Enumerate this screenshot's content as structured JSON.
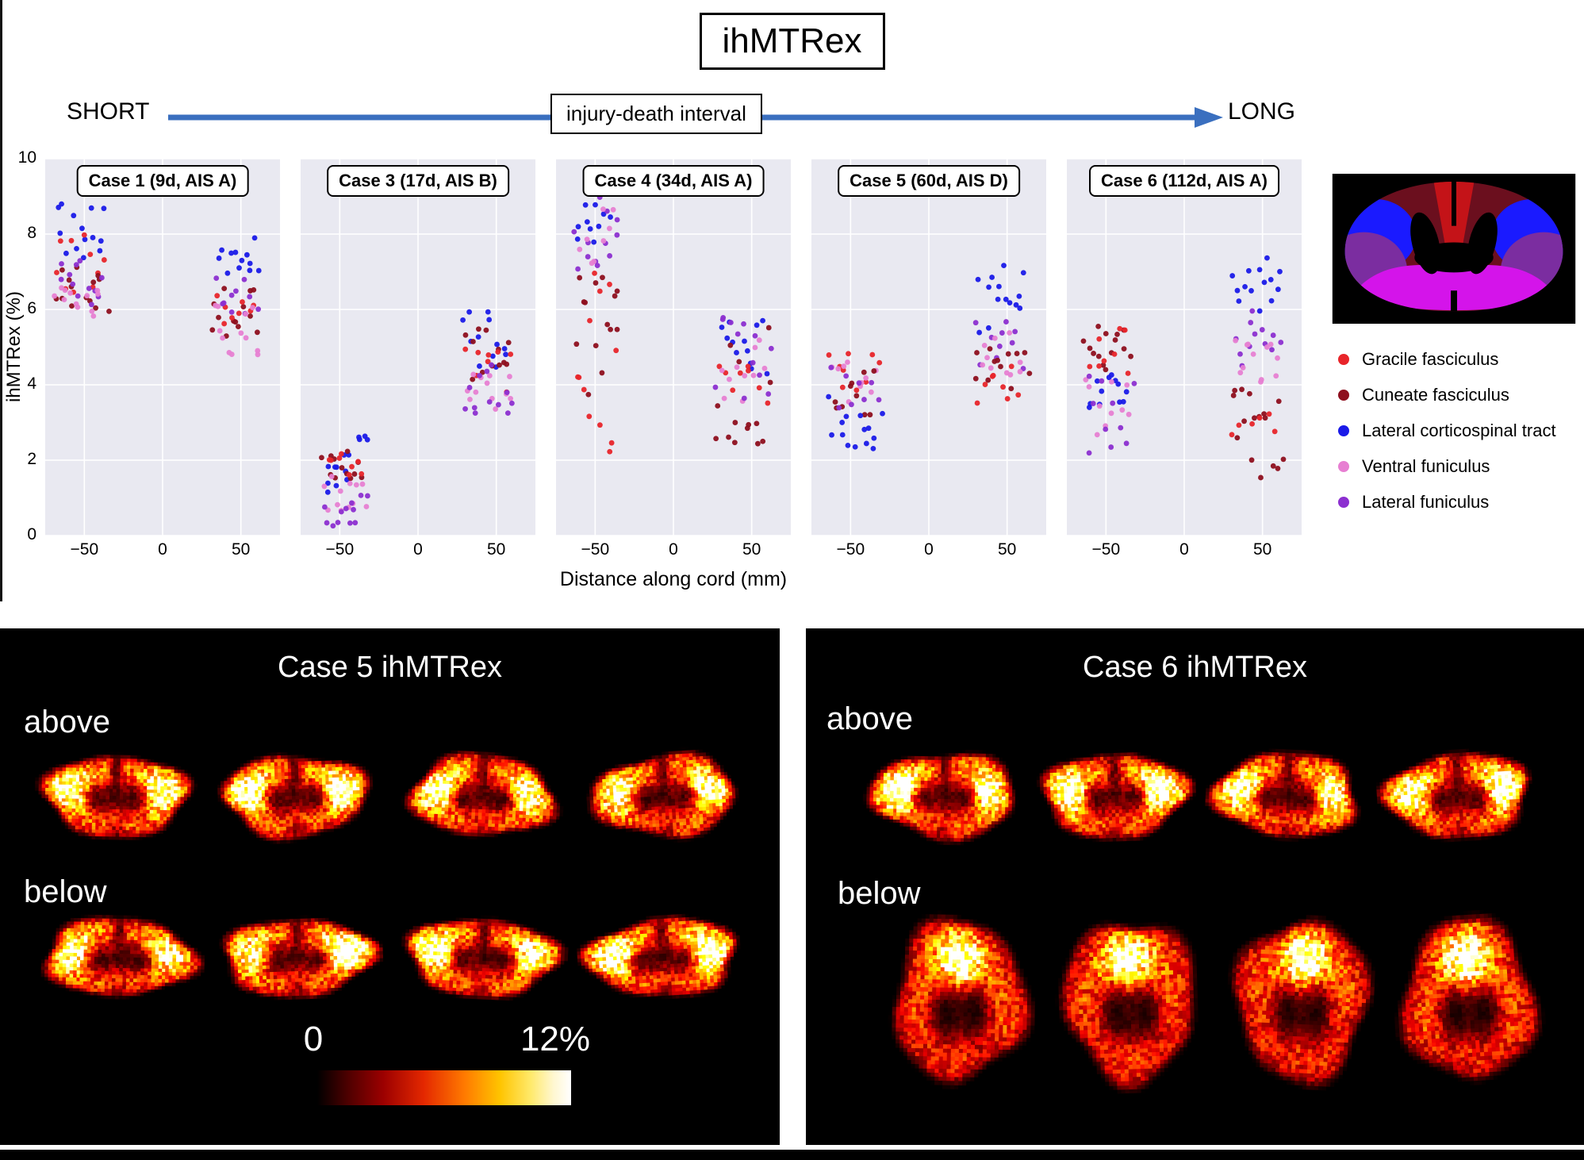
{
  "header": {
    "title": "ihMTRex",
    "axis_arrow": {
      "left": "SHORT",
      "label": "injury-death interval",
      "right": "LONG"
    }
  },
  "chart_data": {
    "type": "scatter",
    "xlabel": "Distance along cord (mm)",
    "ylabel": "ihMTRex (%)",
    "xlim": [
      -75,
      75
    ],
    "ylim": [
      0,
      10
    ],
    "xticks": [
      -50,
      0,
      50
    ],
    "yticks": [
      0,
      2,
      4,
      6,
      8,
      10
    ],
    "grid": true,
    "legend_position": "right",
    "tracts": [
      {
        "id": "gracile",
        "name": "Gracile fasciculus",
        "color": "#e8252a"
      },
      {
        "id": "cuneate",
        "name": "Cuneate fasciculus",
        "color": "#8e0f1e"
      },
      {
        "id": "cst",
        "name": "Lateral corticospinal tract",
        "color": "#1a1ae8"
      },
      {
        "id": "ventral",
        "name": "Ventral funiculus",
        "color": "#e77fd2"
      },
      {
        "id": "lateral",
        "name": "Lateral funiculus",
        "color": "#8c2fd0"
      }
    ],
    "panels": [
      {
        "label": "Case 1 (9d, AIS A)",
        "clusters": [
          {
            "tract": "cst",
            "x": [
              -68,
              -36
            ],
            "y": [
              7.3,
              9.0
            ],
            "n": 14
          },
          {
            "tract": "gracile",
            "x": [
              -68,
              -38
            ],
            "y": [
              6.3,
              8.0
            ],
            "n": 10
          },
          {
            "tract": "cuneate",
            "x": [
              -68,
              -36
            ],
            "y": [
              5.9,
              7.7
            ],
            "n": 14
          },
          {
            "tract": "lateral",
            "x": [
              -66,
              -38
            ],
            "y": [
              6.0,
              7.3
            ],
            "n": 12
          },
          {
            "tract": "ventral",
            "x": [
              -68,
              -40
            ],
            "y": [
              5.7,
              6.6
            ],
            "n": 12
          },
          {
            "tract": "cst",
            "x": [
              34,
              62
            ],
            "y": [
              6.9,
              8.0
            ],
            "n": 12
          },
          {
            "tract": "cuneate",
            "x": [
              32,
              62
            ],
            "y": [
              5.2,
              7.7
            ],
            "n": 13
          },
          {
            "tract": "gracile",
            "x": [
              34,
              60
            ],
            "y": [
              5.6,
              7.0
            ],
            "n": 8
          },
          {
            "tract": "lateral",
            "x": [
              34,
              60
            ],
            "y": [
              5.8,
              7.0
            ],
            "n": 10
          },
          {
            "tract": "ventral",
            "x": [
              32,
              62
            ],
            "y": [
              4.8,
              6.2
            ],
            "n": 12
          }
        ]
      },
      {
        "label": "Case 3 (17d, AIS B)",
        "clusters": [
          {
            "tract": "cst",
            "x": [
              -60,
              -34
            ],
            "y": [
              1.0,
              2.8
            ],
            "n": 14
          },
          {
            "tract": "cuneate",
            "x": [
              -60,
              -36
            ],
            "y": [
              1.5,
              2.3
            ],
            "n": 12
          },
          {
            "tract": "gracile",
            "x": [
              -58,
              -36
            ],
            "y": [
              1.5,
              2.2
            ],
            "n": 8
          },
          {
            "tract": "ventral",
            "x": [
              -60,
              -34
            ],
            "y": [
              0.5,
              1.6
            ],
            "n": 12
          },
          {
            "tract": "lateral",
            "x": [
              -60,
              -34
            ],
            "y": [
              0.2,
              1.3
            ],
            "n": 12
          },
          {
            "tract": "cst",
            "x": [
              30,
              58
            ],
            "y": [
              4.4,
              6.0
            ],
            "n": 12
          },
          {
            "tract": "cuneate",
            "x": [
              30,
              60
            ],
            "y": [
              3.9,
              5.6
            ],
            "n": 12
          },
          {
            "tract": "gracile",
            "x": [
              32,
              58
            ],
            "y": [
              3.8,
              5.0
            ],
            "n": 8
          },
          {
            "tract": "ventral",
            "x": [
              30,
              60
            ],
            "y": [
              3.3,
              4.3
            ],
            "n": 12
          },
          {
            "tract": "lateral",
            "x": [
              30,
              60
            ],
            "y": [
              3.0,
              4.6
            ],
            "n": 12
          }
        ]
      },
      {
        "label": "Case 4 (34d, AIS A)",
        "clusters": [
          {
            "tract": "cst",
            "x": [
              -62,
              -36
            ],
            "y": [
              7.6,
              9.2
            ],
            "n": 12
          },
          {
            "tract": "lateral",
            "x": [
              -62,
              -34
            ],
            "y": [
              7.0,
              9.0
            ],
            "n": 12
          },
          {
            "tract": "ventral",
            "x": [
              -60,
              -36
            ],
            "y": [
              6.8,
              8.7
            ],
            "n": 8
          },
          {
            "tract": "cuneate",
            "x": [
              -62,
              -34
            ],
            "y": [
              3.6,
              7.6
            ],
            "n": 14
          },
          {
            "tract": "gracile",
            "x": [
              -62,
              -36
            ],
            "y": [
              1.6,
              7.2
            ],
            "n": 12
          },
          {
            "tract": "cst",
            "x": [
              30,
              60
            ],
            "y": [
              3.9,
              5.8
            ],
            "n": 12
          },
          {
            "tract": "cuneate",
            "x": [
              28,
              62
            ],
            "y": [
              2.4,
              5.6
            ],
            "n": 14
          },
          {
            "tract": "gracile",
            "x": [
              30,
              58
            ],
            "y": [
              3.0,
              4.6
            ],
            "n": 8
          },
          {
            "tract": "ventral",
            "x": [
              30,
              60
            ],
            "y": [
              3.4,
              5.2
            ],
            "n": 10
          },
          {
            "tract": "lateral",
            "x": [
              28,
              62
            ],
            "y": [
              3.4,
              5.8
            ],
            "n": 12
          }
        ]
      },
      {
        "label": "Case 5 (60d, AIS D)",
        "clusters": [
          {
            "tract": "gracile",
            "x": [
              -62,
              -34
            ],
            "y": [
              3.8,
              5.0
            ],
            "n": 10
          },
          {
            "tract": "ventral",
            "x": [
              -62,
              -32
            ],
            "y": [
              3.4,
              4.6
            ],
            "n": 10
          },
          {
            "tract": "cuneate",
            "x": [
              -60,
              -34
            ],
            "y": [
              3.2,
              4.4
            ],
            "n": 10
          },
          {
            "tract": "lateral",
            "x": [
              -60,
              -34
            ],
            "y": [
              3.3,
              4.5
            ],
            "n": 8
          },
          {
            "tract": "cst",
            "x": [
              -62,
              -32
            ],
            "y": [
              2.3,
              4.0
            ],
            "n": 14
          },
          {
            "tract": "cst",
            "x": [
              32,
              62
            ],
            "y": [
              5.3,
              7.5
            ],
            "n": 14
          },
          {
            "tract": "lateral",
            "x": [
              32,
              60
            ],
            "y": [
              4.4,
              5.7
            ],
            "n": 10
          },
          {
            "tract": "ventral",
            "x": [
              32,
              60
            ],
            "y": [
              4.2,
              5.4
            ],
            "n": 10
          },
          {
            "tract": "cuneate",
            "x": [
              30,
              62
            ],
            "y": [
              3.8,
              5.0
            ],
            "n": 12
          },
          {
            "tract": "gracile",
            "x": [
              32,
              58
            ],
            "y": [
              3.3,
              4.7
            ],
            "n": 8
          }
        ]
      },
      {
        "label": "Case 6 (112d, AIS A)",
        "clusters": [
          {
            "tract": "cuneate",
            "x": [
              -62,
              -36
            ],
            "y": [
              4.4,
              6.0
            ],
            "n": 14
          },
          {
            "tract": "gracile",
            "x": [
              -60,
              -36
            ],
            "y": [
              4.3,
              5.6
            ],
            "n": 8
          },
          {
            "tract": "cst",
            "x": [
              -60,
              -36
            ],
            "y": [
              3.3,
              4.3
            ],
            "n": 12
          },
          {
            "tract": "ventral",
            "x": [
              -62,
              -36
            ],
            "y": [
              2.4,
              4.2
            ],
            "n": 10
          },
          {
            "tract": "lateral",
            "x": [
              -62,
              -34
            ],
            "y": [
              2.0,
              4.3
            ],
            "n": 10
          },
          {
            "tract": "cst",
            "x": [
              32,
              62
            ],
            "y": [
              5.9,
              7.5
            ],
            "n": 14
          },
          {
            "tract": "lateral",
            "x": [
              32,
              60
            ],
            "y": [
              4.4,
              6.1
            ],
            "n": 12
          },
          {
            "tract": "ventral",
            "x": [
              32,
              60
            ],
            "y": [
              3.4,
              5.2
            ],
            "n": 12
          },
          {
            "tract": "cuneate",
            "x": [
              30,
              62
            ],
            "y": [
              1.2,
              4.0
            ],
            "n": 16
          },
          {
            "tract": "gracile",
            "x": [
              32,
              58
            ],
            "y": [
              2.6,
              3.6
            ],
            "n": 6
          }
        ]
      }
    ]
  },
  "maps": {
    "panels": [
      {
        "id": "case5",
        "title": "Case 5 ihMTRex",
        "rows": [
          {
            "label": "above",
            "slices": 4
          },
          {
            "label": "below",
            "slices": 4
          }
        ],
        "colorbar": {
          "min_label": "0",
          "max_label": "12%"
        }
      },
      {
        "id": "case6",
        "title": "Case 6 ihMTRex",
        "rows": [
          {
            "label": "above",
            "slices": 4
          },
          {
            "label": "below",
            "slices": 4
          }
        ]
      }
    ]
  }
}
